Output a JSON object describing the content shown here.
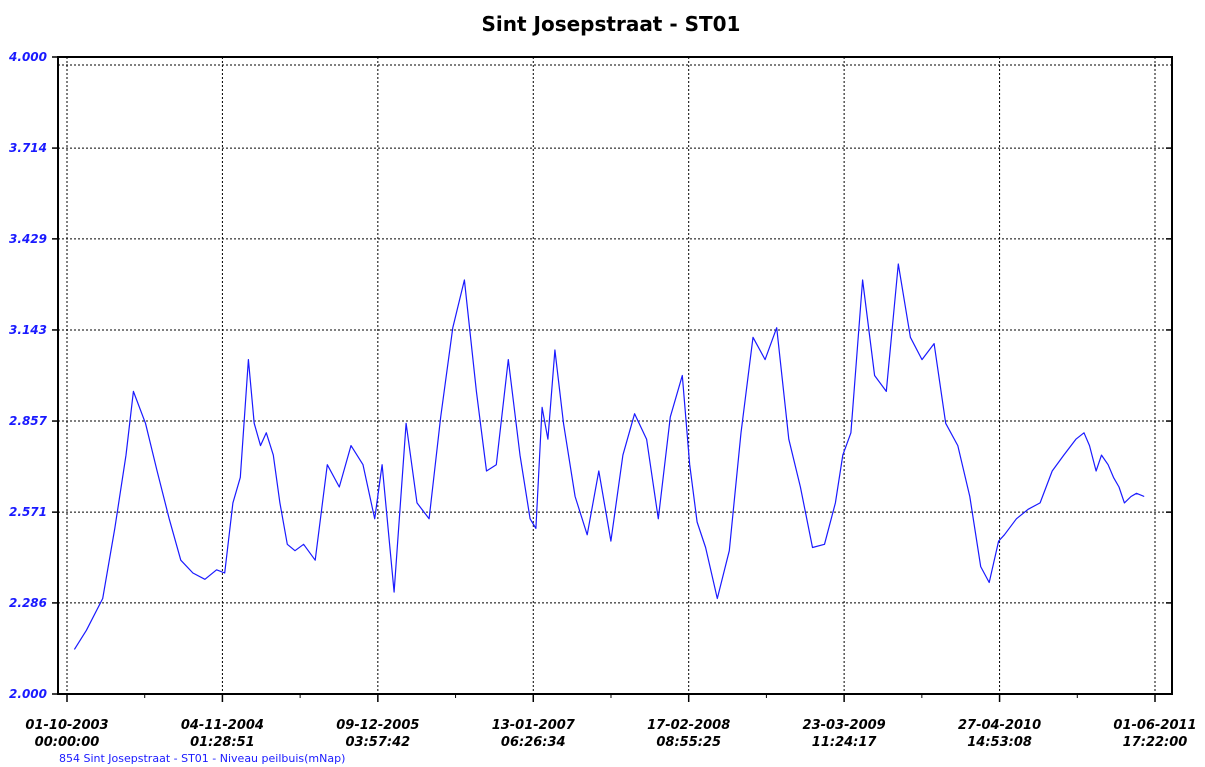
{
  "chart_data": {
    "type": "line",
    "title": "Sint Josepstraat - ST01",
    "xlabel": "",
    "ylabel": "",
    "ylim": [
      2.0,
      4.0
    ],
    "y_ticks": [
      "2.000",
      "2.286",
      "2.571",
      "2.857",
      "3.143",
      "3.429",
      "3.714",
      "4.000"
    ],
    "x_ticks": [
      {
        "date": "01-10-2003",
        "time": "00:00:00"
      },
      {
        "date": "04-11-2004",
        "time": "01:28:51"
      },
      {
        "date": "09-12-2005",
        "time": "03:57:42"
      },
      {
        "date": "13-01-2007",
        "time": "06:26:34"
      },
      {
        "date": "17-02-2008",
        "time": "08:55:25"
      },
      {
        "date": "23-03-2009",
        "time": "11:24:17"
      },
      {
        "date": "27-04-2010",
        "time": "14:53:08"
      },
      {
        "date": "01-06-2011",
        "time": "17:22:00"
      }
    ],
    "grid": true,
    "legend_position": "bottom-left",
    "colors": {
      "line": "#1a1aff",
      "axis_label": "#1a1aff"
    },
    "series": [
      {
        "name": "854 Sint Josepstraat - ST01 - Niveau peilbuis(mNap)",
        "x": [
          "2003-10-20",
          "2003-11-20",
          "2004-01-01",
          "2004-02-01",
          "2004-03-01",
          "2004-03-20",
          "2004-04-20",
          "2004-05-20",
          "2004-06-20",
          "2004-07-20",
          "2004-08-20",
          "2004-09-20",
          "2004-10-20",
          "2004-11-10",
          "2004-12-01",
          "2004-12-20",
          "2005-01-10",
          "2005-01-25",
          "2005-02-10",
          "2005-02-25",
          "2005-03-15",
          "2005-04-01",
          "2005-04-20",
          "2005-05-10",
          "2005-06-01",
          "2005-07-01",
          "2005-08-01",
          "2005-09-01",
          "2005-10-01",
          "2005-11-01",
          "2005-12-01",
          "2005-12-20",
          "2006-01-20",
          "2006-02-20",
          "2006-03-20",
          "2006-04-20",
          "2006-05-20",
          "2006-06-20",
          "2006-07-20",
          "2006-08-20",
          "2006-09-15",
          "2006-10-10",
          "2006-11-10",
          "2006-12-10",
          "2007-01-05",
          "2007-01-20",
          "2007-02-05",
          "2007-02-20",
          "2007-03-10",
          "2007-04-01",
          "2007-05-01",
          "2007-06-01",
          "2007-07-01",
          "2007-08-01",
          "2007-09-01",
          "2007-10-01",
          "2007-11-01",
          "2007-12-01",
          "2008-01-01",
          "2008-02-01",
          "2008-02-20",
          "2008-03-10",
          "2008-04-01",
          "2008-05-01",
          "2008-06-01",
          "2008-07-01",
          "2008-08-01",
          "2008-09-01",
          "2008-10-01",
          "2008-11-01",
          "2008-12-01",
          "2009-01-01",
          "2009-02-01",
          "2009-03-01",
          "2009-03-20",
          "2009-04-10",
          "2009-05-10",
          "2009-06-10",
          "2009-07-10",
          "2009-08-10",
          "2009-09-10",
          "2009-10-10",
          "2009-11-10",
          "2009-12-10",
          "2010-01-10",
          "2010-02-10",
          "2010-03-10",
          "2010-04-01",
          "2010-04-25",
          "2010-05-10",
          "2010-06-10",
          "2010-07-10",
          "2010-08-10",
          "2010-09-10",
          "2010-10-10",
          "2010-11-10",
          "2010-12-01",
          "2010-12-15",
          "2011-01-01",
          "2011-01-15",
          "2011-02-01",
          "2011-02-15",
          "2011-03-01",
          "2011-03-15",
          "2011-04-01",
          "2011-04-15",
          "2011-05-05"
        ],
        "y": [
          2.14,
          2.2,
          2.3,
          2.52,
          2.75,
          2.95,
          2.85,
          2.7,
          2.55,
          2.42,
          2.38,
          2.36,
          2.39,
          2.38,
          2.6,
          2.68,
          3.05,
          2.85,
          2.78,
          2.82,
          2.75,
          2.6,
          2.47,
          2.45,
          2.47,
          2.42,
          2.72,
          2.65,
          2.78,
          2.72,
          2.55,
          2.72,
          2.32,
          2.85,
          2.6,
          2.55,
          2.87,
          3.15,
          3.3,
          2.95,
          2.7,
          2.72,
          3.05,
          2.75,
          2.55,
          2.52,
          2.9,
          2.8,
          3.08,
          2.85,
          2.62,
          2.5,
          2.7,
          2.48,
          2.75,
          2.88,
          2.8,
          2.55,
          2.87,
          3.0,
          2.72,
          2.54,
          2.46,
          2.3,
          2.45,
          2.82,
          3.12,
          3.05,
          3.15,
          2.8,
          2.65,
          2.46,
          2.47,
          2.6,
          2.75,
          2.82,
          3.3,
          3.0,
          2.95,
          3.35,
          3.12,
          3.05,
          3.1,
          2.85,
          2.78,
          2.62,
          2.4,
          2.35,
          2.48,
          2.5,
          2.55,
          2.58,
          2.6,
          2.7,
          2.75,
          2.8,
          2.82,
          2.78,
          2.7,
          2.75,
          2.72,
          2.68,
          2.65,
          2.6,
          2.62,
          2.63,
          2.62
        ]
      }
    ]
  }
}
